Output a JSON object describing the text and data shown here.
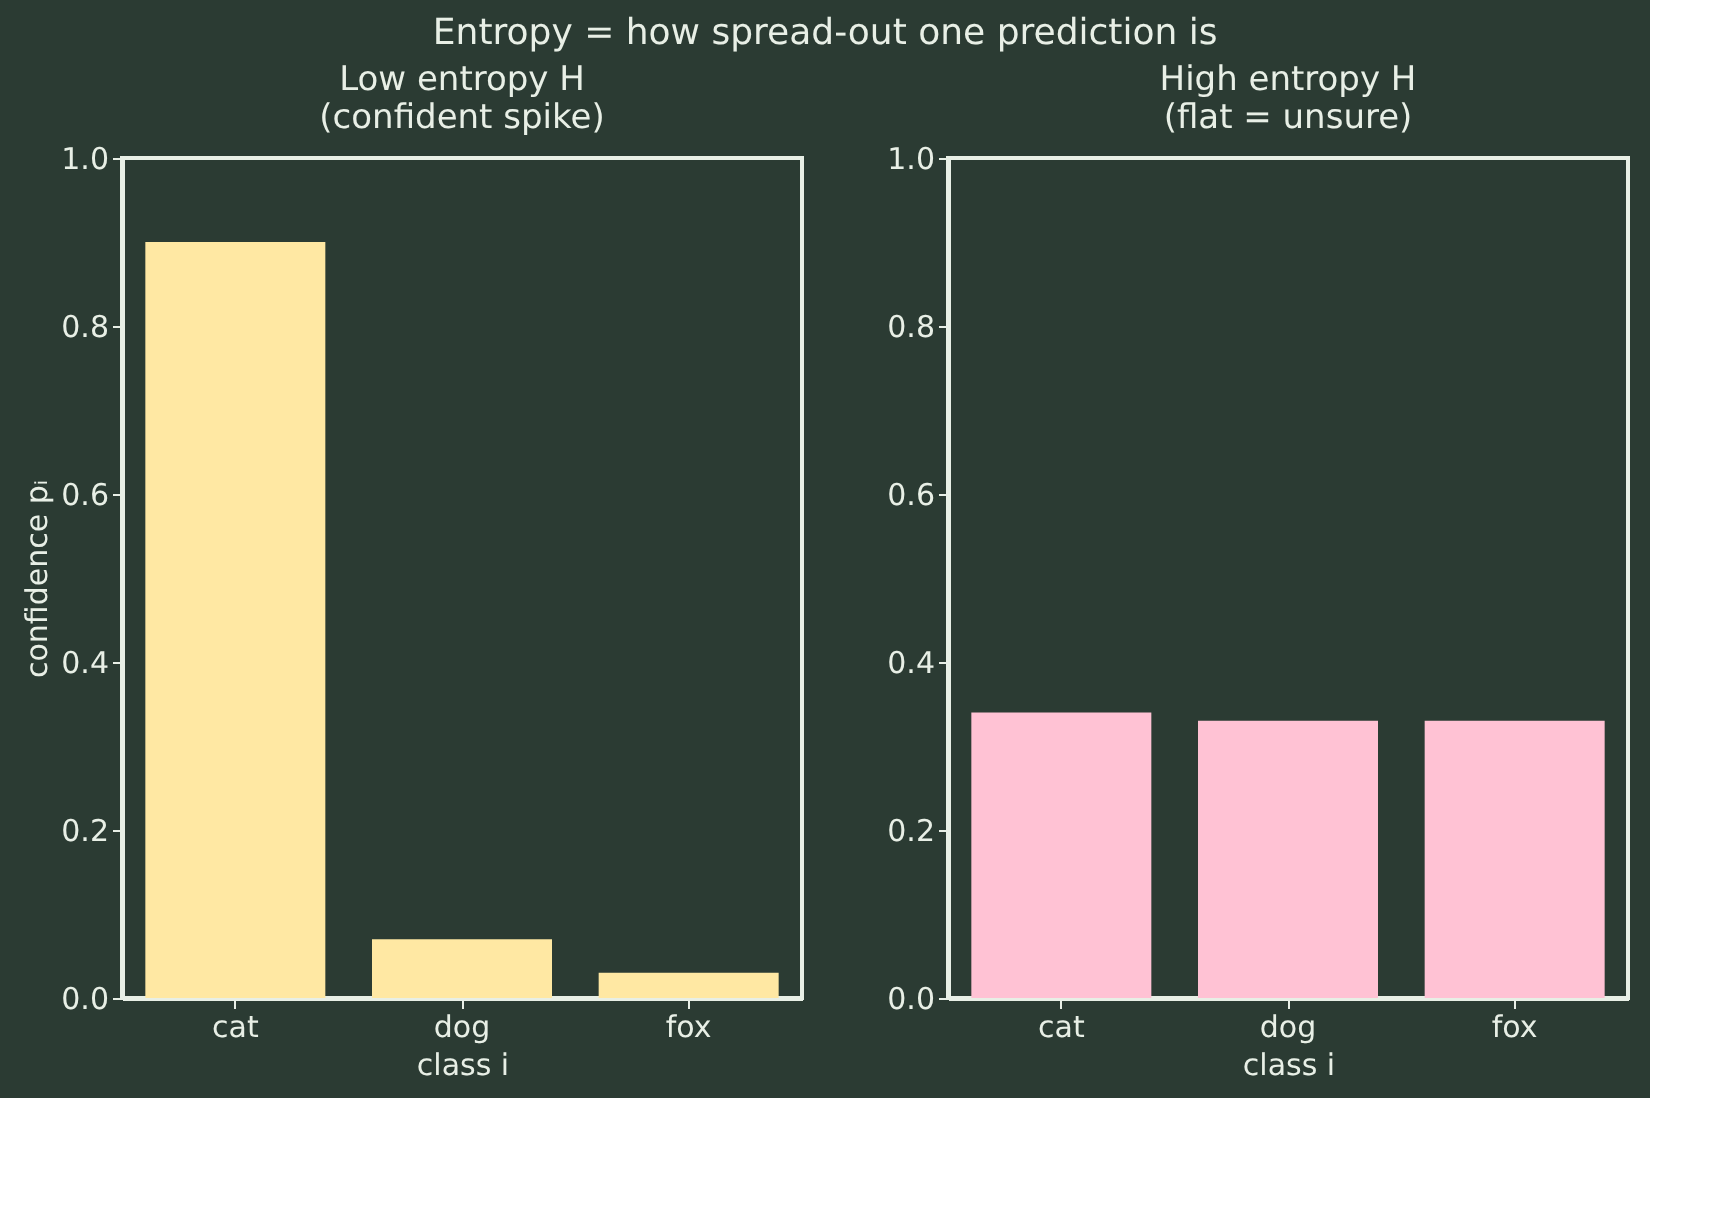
{
  "chart_data": [
    {
      "type": "bar",
      "title": "Low entropy H\n(confident spike)",
      "annotations": [
        "Entropy = how spread-out one prediction is"
      ],
      "categories": [
        "cat",
        "dog",
        "fox"
      ],
      "values": [
        0.9,
        0.07,
        0.03
      ],
      "color": "#ffe8a3",
      "xlabel": "class  i",
      "ylabel": "confidence  pᵢ",
      "ylim": [
        0,
        1
      ],
      "yticks": [
        {
          "value": 0,
          "label": "0.0"
        },
        {
          "value": 0.2,
          "label": "0.2"
        },
        {
          "value": 0.4,
          "label": "0.4"
        },
        {
          "value": 0.6,
          "label": "0.6"
        },
        {
          "value": 0.8,
          "label": "0.8"
        },
        {
          "value": 1,
          "label": "1.0"
        }
      ],
      "grid": false
    },
    {
      "type": "bar",
      "title": "High entropy H\n(flat = unsure)",
      "categories": [
        "cat",
        "dog",
        "fox"
      ],
      "values": [
        0.34,
        0.33,
        0.33
      ],
      "color": "#ffc2d4",
      "xlabel": "class  i",
      "ylim": [
        0,
        1
      ],
      "yticks": [
        {
          "value": 0,
          "label": "0.0"
        },
        {
          "value": 0.2,
          "label": "0.2"
        },
        {
          "value": 0.4,
          "label": "0.4"
        },
        {
          "value": 0.6,
          "label": "0.6"
        },
        {
          "value": 0.8,
          "label": "0.8"
        },
        {
          "value": 1,
          "label": "1.0"
        }
      ],
      "grid": false
    }
  ]
}
